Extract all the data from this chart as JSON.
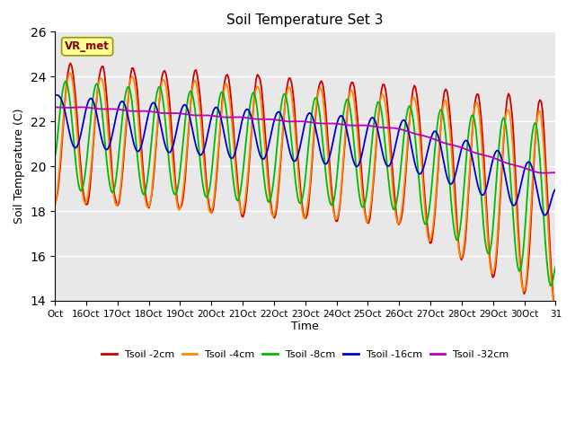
{
  "title": "Soil Temperature Set 3",
  "xlabel": "Time",
  "ylabel": "Soil Temperature (C)",
  "ylim": [
    14,
    26
  ],
  "yticks": [
    14,
    16,
    18,
    20,
    22,
    24,
    26
  ],
  "x_labels": [
    "Oct",
    "16Oct",
    "17Oct",
    "18Oct",
    "19Oct",
    "20Oct",
    "21Oct",
    "22Oct",
    "23Oct",
    "24Oct",
    "25Oct",
    "26Oct",
    "27Oct",
    "28Oct",
    "29Oct",
    "30Oct",
    "31"
  ],
  "legend": [
    "Tsoil -2cm",
    "Tsoil -4cm",
    "Tsoil -8cm",
    "Tsoil -16cm",
    "Tsoil -32cm"
  ],
  "colors": [
    "#cc0000",
    "#ff8800",
    "#00bb00",
    "#0000cc",
    "#bb00bb"
  ],
  "annotation_text": "VR_met",
  "background_color": "#e8e8e8",
  "figure_bg": "#ffffff",
  "grid_color": "#ffffff",
  "line_width": 1.3
}
